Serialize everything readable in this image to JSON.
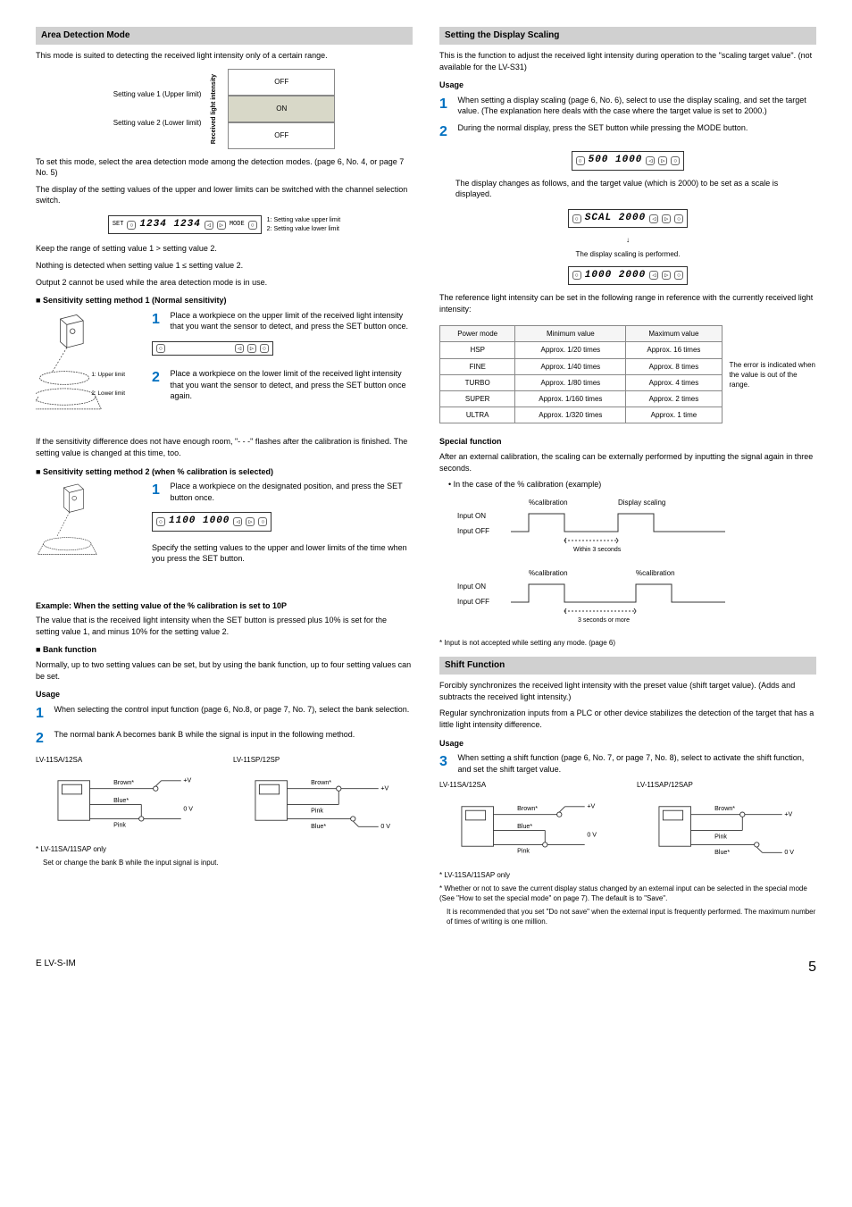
{
  "left": {
    "area_detection": {
      "header": "Area Detection Mode",
      "intro": "This mode is suited to detecting the received light intensity only of a certain range.",
      "chart": {
        "axis_label": "Received light intensity",
        "label1": "Setting value 1 (Upper limit)",
        "label2": "Setting value 2 (Lower limit)",
        "off": "OFF",
        "on": "ON"
      },
      "p1": "To set this mode, select the area detection mode among the detection modes. (page 6, No. 4, or page 7 No. 5)",
      "p2": "The display of the setting values of the upper and lower limits can be switched with the channel selection switch.",
      "lcd_annot1": "1: Setting value upper limit",
      "lcd_annot2": "2: Setting value lower limit",
      "lcd_value": "1234 1234",
      "p3": "Keep the range of setting value 1 > setting value 2.",
      "p4": "Nothing is detected when setting value 1 ≤ setting value 2.",
      "p5": "Output 2 cannot be used while the area detection mode is in use."
    },
    "sens1": {
      "header": "Sensitivity setting method 1 (Normal sensitivity)",
      "step1": "Place a workpiece on the upper limit of the received light intensity that you want the sensor to detect, and press the SET button once.",
      "step2": "Place a workpiece on the lower limit of the received light intensity that you want the sensor to detect, and press the SET button once again.",
      "label_upper": "1: Upper limit",
      "label_lower": "2: Lower limit",
      "p_after": "If the sensitivity difference does not have enough room, \"- - -\" flashes after the calibration is finished. The setting value is changed at this time, too."
    },
    "sens2": {
      "header": "Sensitivity setting method 2 (when % calibration is selected)",
      "step1": "Place a workpiece on the designated position, and press the SET button once.",
      "lcd_value": "1100 1000",
      "p_spec": "Specify the setting values to the upper and lower limits of the time when you press the SET button."
    },
    "example": {
      "header": "Example: When the setting value of the % calibration is set to 10P",
      "p": "The value that is the received light intensity when the SET button is pressed plus 10% is set for the setting value 1, and minus 10% for the setting value 2."
    },
    "bank": {
      "header": "Bank function",
      "intro": "Normally, up to two setting values can be set, but by using the bank function, up to four setting values can be set.",
      "usage_label": "Usage",
      "step1": "When selecting the control input function (page 6, No.8, or page 7, No. 7), select the bank selection.",
      "step2": "The normal bank A becomes bank B while the signal is input in the following method.",
      "wire_left_label": "LV-11SA/12SA",
      "wire_right_label": "LV-11SP/12SP",
      "wire_brown": "Brown*",
      "wire_blue": "Blue*",
      "wire_pink": "Pink",
      "wire_plus_v": "+V",
      "wire_zero_v": "0 V",
      "foot1": "* LV-11SA/11SAP only",
      "foot2": "Set or change the bank B while the input signal is input."
    }
  },
  "right": {
    "scaling": {
      "header": "Setting the Display Scaling",
      "intro": "This is the function to adjust the received light intensity during operation to the \"scaling target value\". (not available for the LV-S31)",
      "usage_label": "Usage",
      "step1": "When setting a display scaling (page 6, No. 6), select to use the display scaling, and set the target value. (The explanation here deals with the case where the target value is set to 2000.)",
      "step2": "During the normal display, press the SET button while pressing the MODE button.",
      "lcd1": "500 1000",
      "p_after_lcd1": "The display changes as follows, and the target value (which is 2000) to be set as a scale is displayed.",
      "lcd2": "SCAL 2000",
      "arrow_down": "↓",
      "scaling_performed": "The display scaling is performed.",
      "lcd3": "1000 2000",
      "p_ref": "The reference light intensity can be set in the following range in reference with the currently received light intensity:",
      "table": {
        "headers": [
          "Power mode",
          "Minimum value",
          "Maximum value"
        ],
        "rows": [
          [
            "HSP",
            "Approx. 1/20 times",
            "Approx. 16 times"
          ],
          [
            "FINE",
            "Approx. 1/40 times",
            "Approx. 8 times"
          ],
          [
            "TURBO",
            "Approx. 1/80 times",
            "Approx. 4 times"
          ],
          [
            "SUPER",
            "Approx. 1/160 times",
            "Approx. 2 times"
          ],
          [
            "ULTRA",
            "Approx. 1/320 times",
            "Approx. 1 time"
          ]
        ],
        "note": "The error is indicated when the value is out of the range."
      },
      "special_header": "Special function",
      "special_p1": "After an external calibration, the scaling can be externally performed by inputting the signal again in three seconds.",
      "special_bullet": "In the case of the % calibration (example)",
      "timing": {
        "cal_label": "%calibration",
        "scaling_label": "Display scaling",
        "input_on": "Input ON",
        "input_off": "Input OFF",
        "within3": "Within 3 seconds",
        "over3": "3 seconds or more"
      },
      "timing_note": "* Input is not accepted while setting any mode. (page 6)"
    },
    "shift": {
      "header": "Shift Function",
      "p1": "Forcibly synchronizes the received light intensity with the preset value (shift target value). (Adds and subtracts the received light intensity.)",
      "p2": "Regular synchronization inputs from a PLC or other device stabilizes the detection of the target that has a little light intensity difference.",
      "usage_label": "Usage",
      "step3": "When setting a shift function (page 6, No. 7, or page 7, No. 8), select to activate the shift function, and set the shift target value.",
      "wire_left_label": "LV-11SA/12SA",
      "wire_right_label": "LV-11SAP/12SAP",
      "wire_brown": "Brown*",
      "wire_blue": "Blue*",
      "wire_pink": "Pink",
      "wire_plus_v": "+V",
      "wire_zero_v": "0 V",
      "foot1": "* LV-11SA/11SAP only",
      "foot2": "* Whether or not to save the current display status changed by an external input can be selected in the special mode (See \"How to set the special mode\" on page 7). The default is to \"Save\".",
      "foot3": "It is recommended that you set \"Do not save\" when the external input is frequently performed. The maximum number of times of writing is one million."
    }
  },
  "footer": {
    "left": "E LV-S-IM",
    "page": "5"
  }
}
